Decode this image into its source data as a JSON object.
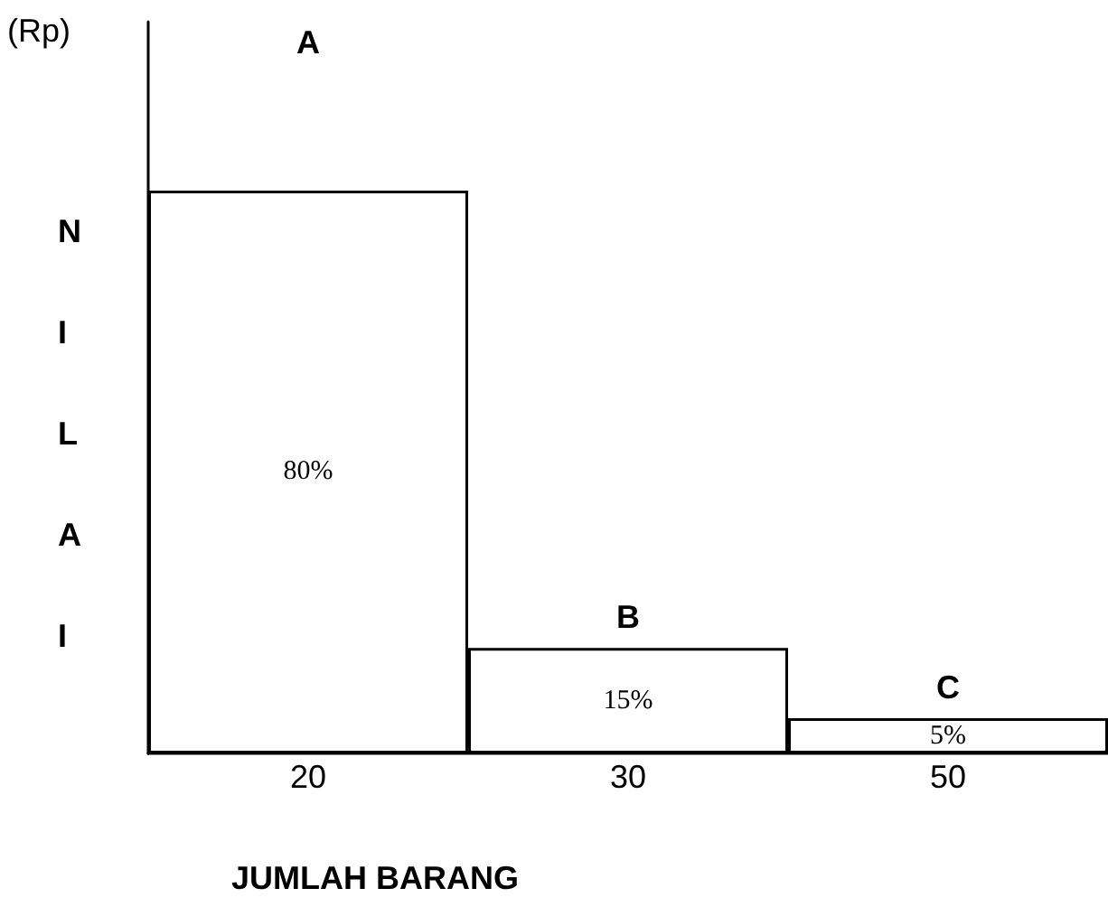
{
  "chart_data": {
    "type": "bar",
    "xlabel": "JUMLAH BARANG",
    "ylabel": "NILAI",
    "categories": [
      "20",
      "30",
      "50"
    ],
    "values": [
      80,
      15,
      5
    ],
    "color": "#ffffff",
    "value_labels": [
      "80%",
      "15%",
      "5%"
    ],
    "grid": false,
    "annotations": [
      "(Rp)",
      "A",
      "B",
      "C"
    ]
  }
}
